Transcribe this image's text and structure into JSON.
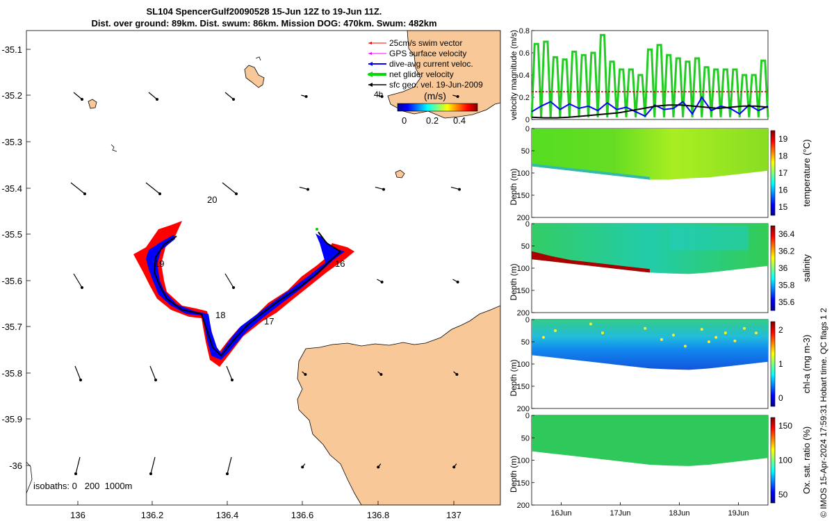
{
  "title": {
    "line1": "SL104 SpencerGulf20090528 15-Jun 12Z to 19-Jun 11Z.",
    "line2": "Dist. over ground: 89km. Dist. swum: 86km. Mission DOG: 470km. Swum: 482km"
  },
  "map": {
    "lon_ticks": [
      "136",
      "136.2",
      "136.4",
      "136.6",
      "136.8",
      "137"
    ],
    "lat_ticks": [
      "-35.1",
      "-35.2",
      "-35.3",
      "-35.4",
      "-35.5",
      "-35.6",
      "-35.7",
      "-35.8",
      "-35.9",
      "-36"
    ],
    "day_labels": [
      "20",
      "19",
      "18",
      "17",
      "16"
    ],
    "isobaths_label": "isobaths: 0   200  1000m",
    "legend": [
      {
        "label": "25cm/s swim vector",
        "color": "#ff0000"
      },
      {
        "label": "GPS surface velocity",
        "color": "#ff00ff"
      },
      {
        "label": "dive-avg current veloc.",
        "color": "#0000ff"
      },
      {
        "label": "net glider velocity",
        "color": "#00dd00"
      },
      {
        "label": "sfc geo. vel. 19-Jun-2009",
        "color": "#000000"
      }
    ],
    "colorbar": {
      "title": "(m/s)",
      "ticks": [
        "0",
        "0.2",
        "0.4"
      ],
      "scale_label": "4h"
    },
    "land_color": "#f9c898"
  },
  "chart_data": [
    {
      "type": "line",
      "title": "",
      "ylabel": "velocity magnitude (m/s)",
      "ylim": [
        0,
        0.8
      ],
      "yticks": [
        "0",
        "0.2",
        "0.4",
        "0.6",
        "0.8"
      ],
      "x_range_days": [
        15.5,
        19.5
      ],
      "series": [
        {
          "name": "net glider velocity",
          "color": "#22cc22",
          "peaks": [
            0.68,
            0.7,
            0.56,
            0.54,
            0.61,
            0.58,
            0.6,
            0.76,
            0.52,
            0.45,
            0.45,
            0.4,
            0.63,
            0.67,
            0.58,
            0.55,
            0.52,
            0.55,
            0.47,
            0.45,
            0.45,
            0.45,
            0.4,
            0.4,
            0.53
          ]
        },
        {
          "name": "25cm/s swim vector",
          "color": "#cc0000",
          "values": [
            0.25,
            0.25
          ]
        },
        {
          "name": "dive-avg current veloc.",
          "color": "#0000ff",
          "values": [
            0.07,
            0.12,
            0.16,
            0.09,
            0.14,
            0.1,
            0.12,
            0.08,
            0.15,
            0.09,
            0.11,
            0.07,
            0.03,
            0.13,
            0.09,
            0.1,
            0.16,
            0.05,
            0.2,
            0.08,
            0.12,
            0.1,
            0.05,
            0.13,
            0.08,
            0.12
          ]
        },
        {
          "name": "sfc geo. vel.",
          "color": "#000000",
          "values": [
            0.02,
            0.015,
            0.015,
            0.02,
            0.03,
            0.04,
            0.05,
            0.06,
            0.08,
            0.1,
            0.12,
            0.13,
            0.13,
            0.12,
            0.11,
            0.1,
            0.11,
            0.12,
            0.12,
            0.11
          ]
        }
      ]
    },
    {
      "type": "heatmap",
      "ylabel": "Depth (m)",
      "clabel": "temperature (°C)",
      "ylim": [
        0,
        200
      ],
      "yticks": [
        "0",
        "50",
        "100",
        "150",
        "200"
      ],
      "cticks": [
        "19",
        "18",
        "17",
        "16",
        "15"
      ],
      "bottom_depth": [
        85,
        90,
        95,
        100,
        105,
        110,
        115,
        115,
        112,
        110,
        105,
        100,
        95
      ],
      "value_summary": {
        "early": 17.0,
        "late": 18.5,
        "bottom": 16.5
      }
    },
    {
      "type": "heatmap",
      "ylabel": "Depth (m)",
      "clabel": "salinity",
      "ylim": [
        0,
        200
      ],
      "yticks": [
        "0",
        "50",
        "100",
        "150",
        "200"
      ],
      "cticks": [
        "36.4",
        "36.2",
        "36",
        "35.8",
        "35.6"
      ],
      "bottom_depth": [
        80,
        85,
        90,
        95,
        100,
        105,
        110,
        112,
        113,
        110,
        105,
        100,
        95
      ],
      "value_summary": {
        "upper": 35.95,
        "bottom_layer_early": 36.45,
        "late_surface": 35.85
      }
    },
    {
      "type": "heatmap",
      "ylabel": "Depth (m)",
      "clabel": "chl-a (mg m-3)",
      "ylim": [
        0,
        200
      ],
      "yticks": [
        "0",
        "50",
        "100",
        "150",
        "200"
      ],
      "cticks": [
        "2",
        "1",
        "0"
      ],
      "bottom_depth": [
        80,
        85,
        90,
        95,
        100,
        105,
        110,
        112,
        113,
        110,
        105,
        100,
        95
      ],
      "value_summary": {
        "surface": 0.85,
        "deep": 0.4
      }
    },
    {
      "type": "heatmap",
      "ylabel": "Depth (m)",
      "clabel": "Ox. sat. ratio (%)",
      "ylim": [
        0,
        200
      ],
      "yticks": [
        "0",
        "50",
        "100",
        "150",
        "200"
      ],
      "cticks": [
        "150",
        "100",
        "50"
      ],
      "xticks": [
        "16Jun",
        "17Jun",
        "18Jun",
        "19Jun"
      ],
      "bottom_depth": [
        80,
        85,
        90,
        95,
        100,
        105,
        110,
        112,
        113,
        110,
        105,
        100,
        95
      ],
      "value_summary": {
        "all": 110
      }
    }
  ],
  "side_note": "© IMOS 15-Apr-2024 17:59:31 Hobart time. QC flags 1  2"
}
